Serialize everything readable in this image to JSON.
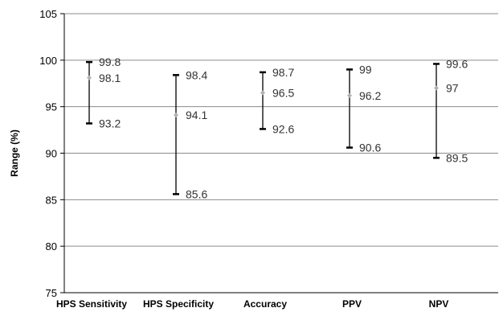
{
  "chart_data": {
    "type": "high-low-mean",
    "ylabel": "Range (%)",
    "ylim": [
      75,
      105
    ],
    "yticks": [
      75,
      80,
      85,
      90,
      95,
      100,
      105
    ],
    "grid": true,
    "categories": [
      "HPS Sensitivity",
      "HPS Specificity",
      "Accuracy",
      "PPV",
      "NPV"
    ],
    "high": [
      99.8,
      98.4,
      98.7,
      99,
      99.6
    ],
    "mean": [
      98.1,
      94.1,
      96.5,
      96.2,
      97
    ],
    "low": [
      93.2,
      85.6,
      92.6,
      90.6,
      89.5
    ],
    "high_labels": [
      "99.8",
      "98.4",
      "98.7",
      "99",
      "99.6"
    ],
    "mean_labels": [
      "98.1",
      "94.1",
      "96.5",
      "96.2",
      "97"
    ],
    "low_labels": [
      "93.2",
      "85.6",
      "92.6",
      "90.6",
      "89.5"
    ],
    "colors": {
      "range_line": "#000000",
      "mean_marker": "#b0b0b0",
      "grid": "#8c8c8c"
    }
  }
}
